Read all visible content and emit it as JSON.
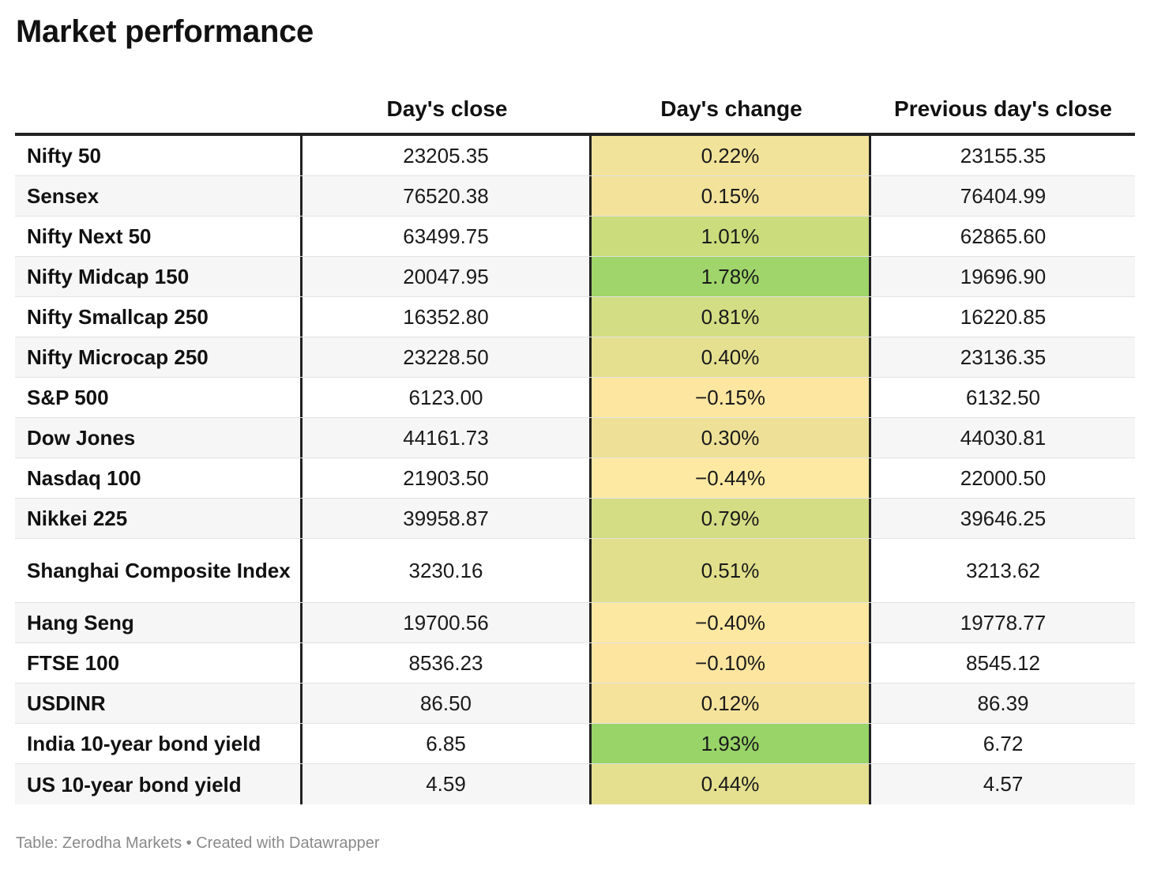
{
  "title": "Market performance",
  "footer": "Table: Zerodha Markets • Created with Datawrapper",
  "chart_data": {
    "type": "table",
    "title": "Market performance",
    "columns": [
      "",
      "Day's close",
      "Day's change",
      "Previous day's close"
    ],
    "rows": [
      {
        "name": "Nifty 50",
        "close": "23205.35",
        "change": "0.22%",
        "prev": "23155.35",
        "change_value": 0.22,
        "color": "#f2e39a"
      },
      {
        "name": "Sensex",
        "close": "76520.38",
        "change": "0.15%",
        "prev": "76404.99",
        "change_value": 0.15,
        "color": "#f2e29a"
      },
      {
        "name": "Nifty Next 50",
        "close": "63499.75",
        "change": "1.01%",
        "prev": "62865.60",
        "change_value": 1.01,
        "color": "#cadc7c"
      },
      {
        "name": "Nifty Midcap 150",
        "close": "20047.95",
        "change": "1.78%",
        "prev": "19696.90",
        "change_value": 1.78,
        "color": "#9fd56a"
      },
      {
        "name": "Nifty Smallcap 250",
        "close": "16352.80",
        "change": "0.81%",
        "prev": "16220.85",
        "change_value": 0.81,
        "color": "#d3dd83"
      },
      {
        "name": "Nifty Microcap 250",
        "close": "23228.50",
        "change": "0.40%",
        "prev": "23136.35",
        "change_value": 0.4,
        "color": "#e5e08f"
      },
      {
        "name": "S&P 500",
        "close": "6123.00",
        "change": "−0.15%",
        "prev": "6132.50",
        "change_value": -0.15,
        "color": "#fde6a0"
      },
      {
        "name": "Dow Jones",
        "close": "44161.73",
        "change": "0.30%",
        "prev": "44030.81",
        "change_value": 0.3,
        "color": "#eee197"
      },
      {
        "name": "Nasdaq 100",
        "close": "21903.50",
        "change": "−0.44%",
        "prev": "22000.50",
        "change_value": -0.44,
        "color": "#fde9a2"
      },
      {
        "name": "Nikkei 225",
        "close": "39958.87",
        "change": "0.79%",
        "prev": "39646.25",
        "change_value": 0.79,
        "color": "#d5dd84"
      },
      {
        "name": "Shanghai Composite Index",
        "close": "3230.16",
        "change": "0.51%",
        "prev": "3213.62",
        "change_value": 0.51,
        "color": "#e2df8c",
        "tall": true
      },
      {
        "name": "Hang Seng",
        "close": "19700.56",
        "change": "−0.40%",
        "prev": "19778.77",
        "change_value": -0.4,
        "color": "#fde8a1"
      },
      {
        "name": "FTSE 100",
        "close": "8536.23",
        "change": "−0.10%",
        "prev": "8545.12",
        "change_value": -0.1,
        "color": "#fde59f"
      },
      {
        "name": "USDINR",
        "close": "86.50",
        "change": "0.12%",
        "prev": "86.39",
        "change_value": 0.12,
        "color": "#f6e39b"
      },
      {
        "name": "India 10-year bond yield",
        "close": "6.85",
        "change": "1.93%",
        "prev": "6.72",
        "change_value": 1.93,
        "color": "#98d468"
      },
      {
        "name": "US 10-year bond yield",
        "close": "4.59",
        "change": "0.44%",
        "prev": "4.57",
        "change_value": 0.44,
        "color": "#e5e08f"
      }
    ]
  }
}
